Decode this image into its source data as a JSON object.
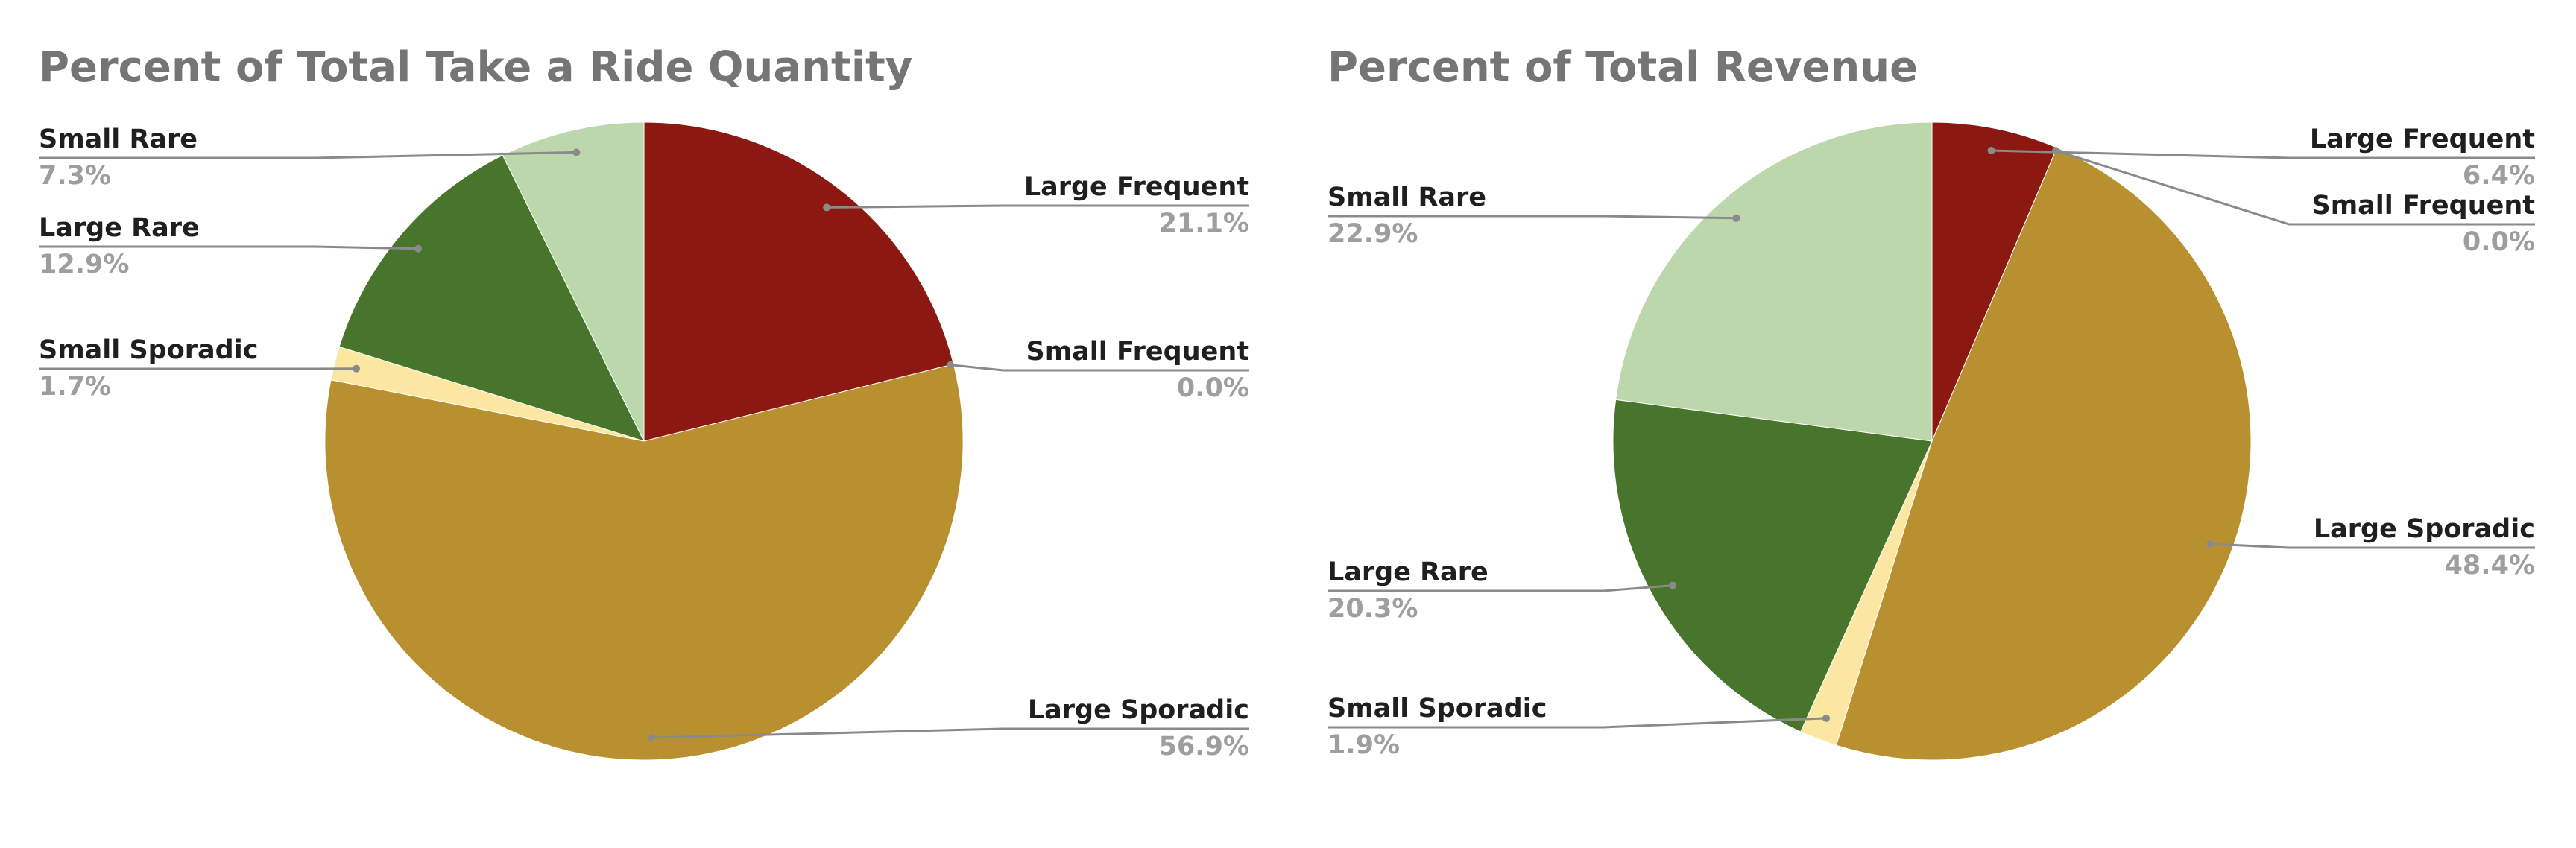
{
  "chart_data": [
    {
      "type": "pie",
      "title": "Percent of Total Take a Ride Quantity",
      "start": "top",
      "direction": "clockwise",
      "slices": [
        {
          "label": "Large Frequent",
          "value": 21.1,
          "display": "21.1%",
          "color": "#8b1912",
          "label_side": "right"
        },
        {
          "label": "Small Frequent",
          "value": 0.0,
          "display": "0.0%",
          "color": "#5a0f0c",
          "label_side": "right"
        },
        {
          "label": "Large Sporadic",
          "value": 56.9,
          "display": "56.9%",
          "color": "#b8902f",
          "label_side": "right"
        },
        {
          "label": "Small Sporadic",
          "value": 1.7,
          "display": "1.7%",
          "color": "#fbe6a2",
          "label_side": "left"
        },
        {
          "label": "Large Rare",
          "value": 12.9,
          "display": "12.9%",
          "color": "#48752c",
          "label_side": "left"
        },
        {
          "label": "Small Rare",
          "value": 7.3,
          "display": "7.3%",
          "color": "#bbd7ab",
          "label_side": "left"
        }
      ]
    },
    {
      "type": "pie",
      "title": "Percent of Total Revenue",
      "start": "top",
      "direction": "clockwise",
      "slices": [
        {
          "label": "Large Frequent",
          "value": 6.4,
          "display": "6.4%",
          "color": "#8b1912",
          "label_side": "right"
        },
        {
          "label": "Small Frequent",
          "value": 0.0,
          "display": "0.0%",
          "color": "#5a0f0c",
          "label_side": "right"
        },
        {
          "label": "Large Sporadic",
          "value": 48.4,
          "display": "48.4%",
          "color": "#b8902f",
          "label_side": "right"
        },
        {
          "label": "Small Sporadic",
          "value": 1.9,
          "display": "1.9%",
          "color": "#fbe6a2",
          "label_side": "left"
        },
        {
          "label": "Large Rare",
          "value": 20.3,
          "display": "20.3%",
          "color": "#48752c",
          "label_side": "left"
        },
        {
          "label": "Small Rare",
          "value": 22.9,
          "display": "22.9%",
          "color": "#bbd7ab",
          "label_side": "left"
        }
      ]
    }
  ]
}
